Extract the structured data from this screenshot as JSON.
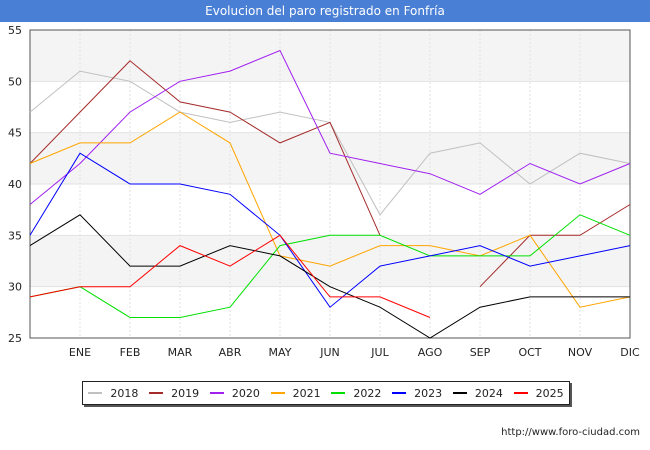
{
  "title": "Evolucion del paro registrado en Fonfría",
  "footer": "http://www.foro-ciudad.com",
  "chart_data": {
    "type": "line",
    "x": [
      "",
      "ENE",
      "FEB",
      "MAR",
      "ABR",
      "MAY",
      "JUN",
      "JUL",
      "AGO",
      "SEP",
      "OCT",
      "NOV",
      "DIC"
    ],
    "ylim": [
      25,
      55
    ],
    "yticks": [
      25,
      30,
      35,
      40,
      45,
      50,
      55
    ],
    "grid": true,
    "legend_position": "bottom",
    "series": [
      {
        "name": "2018",
        "color": "#c0c0c0",
        "values": [
          47,
          51,
          50,
          47,
          46,
          47,
          46,
          37,
          43,
          44,
          40,
          43,
          42
        ]
      },
      {
        "name": "2019",
        "color": "#a52a2a",
        "values": [
          42,
          47,
          52,
          48,
          47,
          44,
          46,
          35,
          null,
          30,
          35,
          35,
          38
        ]
      },
      {
        "name": "2020",
        "color": "#a020f0",
        "values": [
          38,
          42,
          47,
          50,
          51,
          53,
          43,
          42,
          41,
          39,
          42,
          40,
          42
        ]
      },
      {
        "name": "2021",
        "color": "#ffa500",
        "values": [
          42,
          44,
          44,
          47,
          44,
          33,
          32,
          34,
          34,
          33,
          35,
          28,
          29
        ]
      },
      {
        "name": "2022",
        "color": "#00e000",
        "values": [
          29,
          30,
          27,
          27,
          28,
          34,
          35,
          35,
          33,
          33,
          33,
          37,
          35
        ]
      },
      {
        "name": "2023",
        "color": "#0000ff",
        "values": [
          35,
          43,
          40,
          40,
          39,
          35,
          28,
          32,
          33,
          34,
          32,
          33,
          34
        ]
      },
      {
        "name": "2024",
        "color": "#000000",
        "values": [
          34,
          37,
          32,
          32,
          34,
          33,
          30,
          28,
          25,
          28,
          29,
          29,
          29
        ]
      },
      {
        "name": "2025",
        "color": "#ff0000",
        "values": [
          29,
          30,
          30,
          34,
          32,
          35,
          29,
          29,
          27,
          null,
          null,
          null,
          null
        ]
      }
    ]
  }
}
